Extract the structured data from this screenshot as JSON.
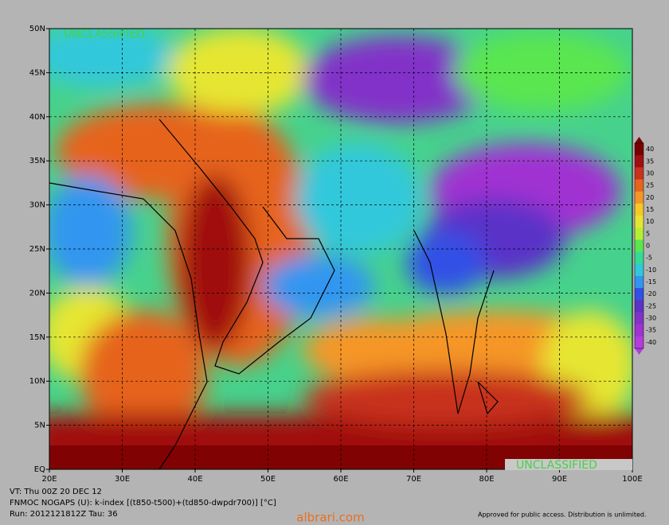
{
  "banner_top": "UNCLASSIFIED",
  "banner_bottom": "UNCLASSIFIED",
  "lat_labels": [
    "50N",
    "45N",
    "40N",
    "35N",
    "30N",
    "25N",
    "20N",
    "15N",
    "10N",
    "5N",
    "EQ"
  ],
  "lon_labels": [
    "20E",
    "30E",
    "40E",
    "50E",
    "60E",
    "70E",
    "80E",
    "90E",
    "100E"
  ],
  "colorbar": {
    "ticks": [
      40,
      35,
      30,
      25,
      20,
      15,
      10,
      5,
      0,
      -5,
      -10,
      -15,
      -20,
      -25,
      -30,
      -35,
      -40
    ],
    "colors": [
      "#780000",
      "#a01010",
      "#c8321e",
      "#e6641e",
      "#f59628",
      "#f5c828",
      "#e6e632",
      "#b4f032",
      "#5ae650",
      "#32dc96",
      "#32c8dc",
      "#3296f0",
      "#3250e6",
      "#5a32c8",
      "#8232c8",
      "#a032d2",
      "#b43cdc"
    ]
  },
  "footer": {
    "valid_time": "VT: Thu 00Z 20 DEC 12",
    "model": "FNMOC NOGAPS (U): k-index [(t850-t500)+(td850-dwpdr700)] [°C]",
    "run": "Run: 2012121812Z Tau: 36",
    "approval": "Approved for public access. Distribution is unlimited."
  },
  "watermark": "albrari.com"
}
